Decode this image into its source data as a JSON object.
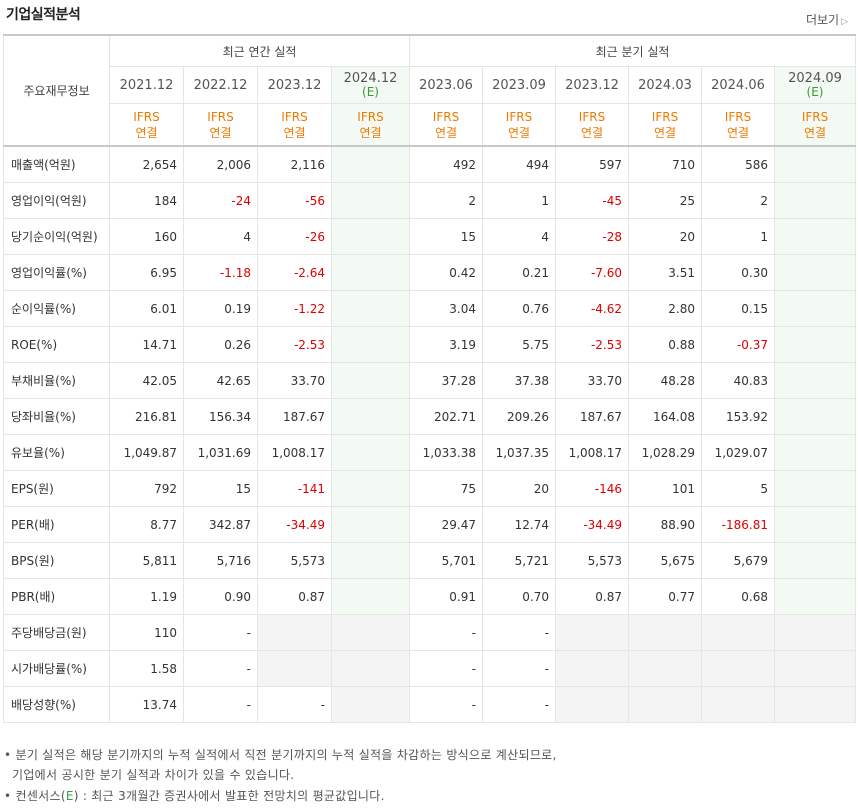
{
  "header": {
    "title": "기업실적분석",
    "more": "더보기"
  },
  "table": {
    "corner_label": "주요재무정보",
    "annual_group": "최근 연간 실적",
    "quarter_group": "최근 분기 실적",
    "annual_periods": [
      {
        "year": "2021.12",
        "est": ""
      },
      {
        "year": "2022.12",
        "est": ""
      },
      {
        "year": "2023.12",
        "est": ""
      },
      {
        "year": "2024.12",
        "est": "(E)"
      }
    ],
    "quarter_periods": [
      {
        "year": "2023.06",
        "est": ""
      },
      {
        "year": "2023.09",
        "est": ""
      },
      {
        "year": "2023.12",
        "est": ""
      },
      {
        "year": "2024.03",
        "est": ""
      },
      {
        "year": "2024.06",
        "est": ""
      },
      {
        "year": "2024.09",
        "est": "(E)"
      }
    ],
    "acc_line1": "IFRS",
    "acc_line2": "연결",
    "rows": [
      {
        "label": "매출액(억원)",
        "a": [
          "2,654",
          "2,006",
          "2,116",
          ""
        ],
        "q": [
          "492",
          "494",
          "597",
          "710",
          "586",
          ""
        ]
      },
      {
        "label": "영업이익(억원)",
        "a": [
          "184",
          "-24",
          "-56",
          ""
        ],
        "q": [
          "2",
          "1",
          "-45",
          "25",
          "2",
          ""
        ]
      },
      {
        "label": "당기순이익(억원)",
        "a": [
          "160",
          "4",
          "-26",
          ""
        ],
        "q": [
          "15",
          "4",
          "-28",
          "20",
          "1",
          ""
        ]
      },
      {
        "label": "영업이익률(%)",
        "a": [
          "6.95",
          "-1.18",
          "-2.64",
          ""
        ],
        "q": [
          "0.42",
          "0.21",
          "-7.60",
          "3.51",
          "0.30",
          ""
        ]
      },
      {
        "label": "순이익률(%)",
        "a": [
          "6.01",
          "0.19",
          "-1.22",
          ""
        ],
        "q": [
          "3.04",
          "0.76",
          "-4.62",
          "2.80",
          "0.15",
          ""
        ]
      },
      {
        "label": "ROE(%)",
        "a": [
          "14.71",
          "0.26",
          "-2.53",
          ""
        ],
        "q": [
          "3.19",
          "5.75",
          "-2.53",
          "0.88",
          "-0.37",
          ""
        ]
      },
      {
        "label": "부채비율(%)",
        "a": [
          "42.05",
          "42.65",
          "33.70",
          ""
        ],
        "q": [
          "37.28",
          "37.38",
          "33.70",
          "48.28",
          "40.83",
          ""
        ]
      },
      {
        "label": "당좌비율(%)",
        "a": [
          "216.81",
          "156.34",
          "187.67",
          ""
        ],
        "q": [
          "202.71",
          "209.26",
          "187.67",
          "164.08",
          "153.92",
          ""
        ]
      },
      {
        "label": "유보율(%)",
        "a": [
          "1,049.87",
          "1,031.69",
          "1,008.17",
          ""
        ],
        "q": [
          "1,033.38",
          "1,037.35",
          "1,008.17",
          "1,028.29",
          "1,029.07",
          ""
        ]
      },
      {
        "label": "EPS(원)",
        "a": [
          "792",
          "15",
          "-141",
          ""
        ],
        "q": [
          "75",
          "20",
          "-146",
          "101",
          "5",
          ""
        ]
      },
      {
        "label": "PER(배)",
        "a": [
          "8.77",
          "342.87",
          "-34.49",
          ""
        ],
        "q": [
          "29.47",
          "12.74",
          "-34.49",
          "88.90",
          "-186.81",
          ""
        ]
      },
      {
        "label": "BPS(원)",
        "a": [
          "5,811",
          "5,716",
          "5,573",
          ""
        ],
        "q": [
          "5,701",
          "5,721",
          "5,573",
          "5,675",
          "5,679",
          ""
        ]
      },
      {
        "label": "PBR(배)",
        "a": [
          "1.19",
          "0.90",
          "0.87",
          ""
        ],
        "q": [
          "0.91",
          "0.70",
          "0.87",
          "0.77",
          "0.68",
          ""
        ]
      },
      {
        "label": "주당배당금(원)",
        "a": [
          "110",
          "-",
          "",
          ""
        ],
        "q": [
          "-",
          "-",
          "",
          "",
          "",
          ""
        ]
      },
      {
        "label": "시가배당률(%)",
        "a": [
          "1.58",
          "-",
          "",
          ""
        ],
        "q": [
          "-",
          "-",
          "",
          "",
          "",
          ""
        ]
      },
      {
        "label": "배당성향(%)",
        "a": [
          "13.74",
          "-",
          "-",
          ""
        ],
        "q": [
          "-",
          "-",
          "",
          "",
          "",
          ""
        ]
      }
    ]
  },
  "footnotes": {
    "line1": "분기 실적은 해당 분기까지의 누적 실적에서 직전 분기까지의 누적 실적을 차감하는 방식으로 계산되므로,",
    "line2": "기업에서 공시한 분기 실적과 차이가 있을 수 있습니다.",
    "line3_pre": "컨센서스(",
    "line3_e": "E",
    "line3_post": ") : 최근 3개월간 증권사에서 발표한 전망치의 평균값입니다."
  },
  "colors": {
    "negative": "#e00000",
    "accounting": "#f07800",
    "estimate": "#3a9b3a"
  }
}
